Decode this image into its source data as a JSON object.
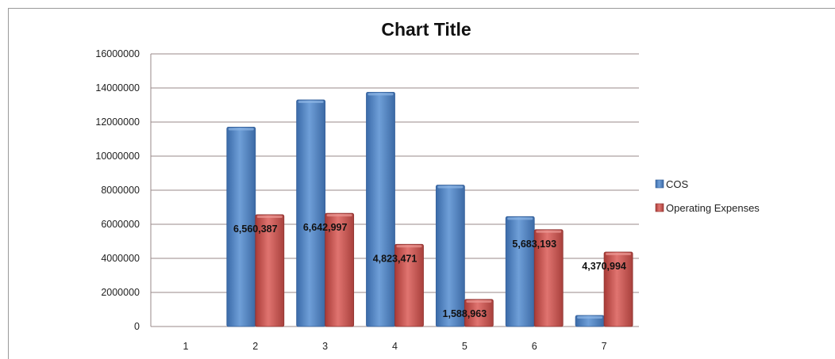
{
  "chart_data": {
    "type": "bar",
    "title": "Chart Title",
    "xlabel": "",
    "ylabel": "",
    "categories": [
      "1",
      "2",
      "3",
      "4",
      "5",
      "6",
      "7"
    ],
    "ylim": [
      0,
      16000000
    ],
    "y_ticks": [
      "0",
      "2000000",
      "4000000",
      "6000000",
      "8000000",
      "10000000",
      "12000000",
      "14000000",
      "16000000"
    ],
    "grid": true,
    "legend_position": "right",
    "series": [
      {
        "name": "COS",
        "color": "#4a7ebb",
        "values": [
          0,
          11700000,
          13300000,
          13750000,
          8300000,
          6450000,
          650000
        ],
        "labels": [
          "",
          "",
          "",
          "",
          "",
          "",
          ""
        ]
      },
      {
        "name": "Operating Expenses",
        "color": "#c0504d",
        "values": [
          0,
          6560387,
          6642997,
          4823471,
          1588963,
          5683193,
          4370994
        ],
        "labels": [
          "",
          "6,560,387",
          "6,642,997",
          "4,823,471",
          "1,588,963",
          "5,683,193",
          "4,370,994"
        ]
      }
    ]
  }
}
